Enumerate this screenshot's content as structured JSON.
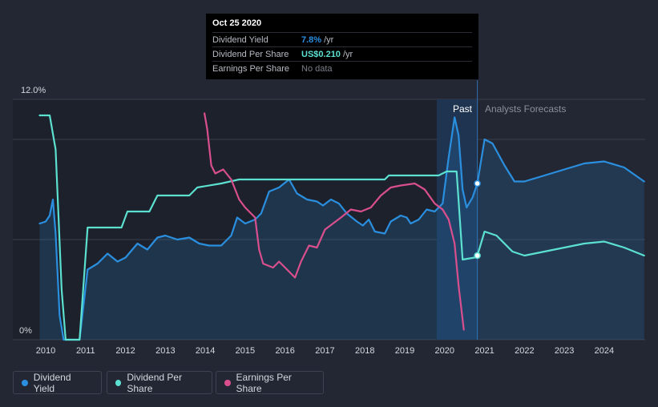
{
  "chart_data": {
    "type": "line",
    "y_axis": {
      "top_label": "12.0%",
      "bottom_label": "0%",
      "ylim": [
        0,
        12
      ]
    },
    "x_ticks": [
      "2010",
      "2011",
      "2012",
      "2013",
      "2014",
      "2015",
      "2016",
      "2017",
      "2018",
      "2019",
      "2020",
      "2021",
      "2022",
      "2023",
      "2024"
    ],
    "xlim": [
      2009.8,
      2025.0
    ],
    "gridlines_pct": [
      0,
      5,
      10,
      12
    ],
    "regions": {
      "past_label": "Past",
      "forecast_label": "Analysts Forecasts",
      "past_highlight": [
        2019.8,
        2020.82
      ]
    },
    "series": [
      {
        "name": "Dividend Yield",
        "color": "#2b8fe0",
        "fill": true,
        "points": [
          [
            2009.85,
            5.8
          ],
          [
            2010.0,
            5.9
          ],
          [
            2010.1,
            6.2
          ],
          [
            2010.18,
            7.0
          ],
          [
            2010.25,
            5.3
          ],
          [
            2010.35,
            1.2
          ],
          [
            2010.45,
            0.0
          ],
          [
            2010.85,
            0.0
          ],
          [
            2011.05,
            3.5
          ],
          [
            2011.3,
            3.8
          ],
          [
            2011.55,
            4.3
          ],
          [
            2011.8,
            3.9
          ],
          [
            2012.0,
            4.1
          ],
          [
            2012.3,
            4.8
          ],
          [
            2012.55,
            4.5
          ],
          [
            2012.8,
            5.1
          ],
          [
            2013.0,
            5.2
          ],
          [
            2013.3,
            5.0
          ],
          [
            2013.6,
            5.1
          ],
          [
            2013.85,
            4.8
          ],
          [
            2014.1,
            4.7
          ],
          [
            2014.4,
            4.7
          ],
          [
            2014.65,
            5.2
          ],
          [
            2014.8,
            6.1
          ],
          [
            2015.0,
            5.8
          ],
          [
            2015.25,
            6.0
          ],
          [
            2015.4,
            6.3
          ],
          [
            2015.6,
            7.4
          ],
          [
            2015.85,
            7.6
          ],
          [
            2016.1,
            8.0
          ],
          [
            2016.3,
            7.3
          ],
          [
            2016.55,
            7.0
          ],
          [
            2016.8,
            6.9
          ],
          [
            2016.95,
            6.7
          ],
          [
            2017.15,
            7.0
          ],
          [
            2017.35,
            6.8
          ],
          [
            2017.55,
            6.3
          ],
          [
            2017.8,
            5.9
          ],
          [
            2017.95,
            5.7
          ],
          [
            2018.0,
            5.8
          ],
          [
            2018.1,
            6.0
          ],
          [
            2018.25,
            5.4
          ],
          [
            2018.5,
            5.3
          ],
          [
            2018.65,
            5.9
          ],
          [
            2018.9,
            6.2
          ],
          [
            2019.05,
            6.1
          ],
          [
            2019.15,
            5.8
          ],
          [
            2019.35,
            6.0
          ],
          [
            2019.55,
            6.5
          ],
          [
            2019.75,
            6.4
          ],
          [
            2019.95,
            6.8
          ],
          [
            2020.1,
            9.1
          ],
          [
            2020.25,
            11.1
          ],
          [
            2020.35,
            10.2
          ],
          [
            2020.45,
            7.5
          ],
          [
            2020.55,
            6.6
          ],
          [
            2020.7,
            7.1
          ],
          [
            2020.82,
            7.8
          ],
          [
            2021.0,
            10.0
          ],
          [
            2021.2,
            9.8
          ],
          [
            2021.5,
            8.7
          ],
          [
            2021.75,
            7.9
          ],
          [
            2022.0,
            7.9
          ],
          [
            2022.5,
            8.2
          ],
          [
            2023.0,
            8.5
          ],
          [
            2023.5,
            8.8
          ],
          [
            2024.0,
            8.9
          ],
          [
            2024.5,
            8.6
          ],
          [
            2025.0,
            7.9
          ]
        ]
      },
      {
        "name": "Dividend Per Share",
        "color": "#5ce0d0",
        "fill": false,
        "points": [
          [
            2009.85,
            11.2
          ],
          [
            2010.1,
            11.2
          ],
          [
            2010.25,
            9.5
          ],
          [
            2010.4,
            2.5
          ],
          [
            2010.5,
            0.0
          ],
          [
            2010.85,
            0.0
          ],
          [
            2011.05,
            5.6
          ],
          [
            2011.4,
            5.6
          ],
          [
            2011.9,
            5.6
          ],
          [
            2012.05,
            6.4
          ],
          [
            2012.6,
            6.4
          ],
          [
            2012.8,
            7.2
          ],
          [
            2013.6,
            7.2
          ],
          [
            2013.8,
            7.6
          ],
          [
            2014.4,
            7.8
          ],
          [
            2014.85,
            8.0
          ],
          [
            2015.5,
            8.0
          ],
          [
            2016.3,
            8.0
          ],
          [
            2017.5,
            8.0
          ],
          [
            2018.5,
            8.0
          ],
          [
            2018.6,
            8.2
          ],
          [
            2019.0,
            8.2
          ],
          [
            2019.85,
            8.2
          ],
          [
            2020.05,
            8.4
          ],
          [
            2020.3,
            8.4
          ],
          [
            2020.45,
            4.0
          ],
          [
            2020.75,
            4.1
          ],
          [
            2020.82,
            4.2
          ],
          [
            2021.0,
            5.4
          ],
          [
            2021.3,
            5.2
          ],
          [
            2021.7,
            4.4
          ],
          [
            2022.0,
            4.2
          ],
          [
            2022.5,
            4.4
          ],
          [
            2023.0,
            4.6
          ],
          [
            2023.5,
            4.8
          ],
          [
            2024.0,
            4.9
          ],
          [
            2024.5,
            4.6
          ],
          [
            2025.0,
            4.2
          ]
        ]
      },
      {
        "name": "Earnings Per Share",
        "color": "#d94f8e",
        "fill": false,
        "points": [
          [
            2013.98,
            11.3
          ],
          [
            2014.05,
            10.5
          ],
          [
            2014.15,
            8.7
          ],
          [
            2014.25,
            8.3
          ],
          [
            2014.45,
            8.5
          ],
          [
            2014.65,
            8.0
          ],
          [
            2014.85,
            7.0
          ],
          [
            2015.0,
            6.6
          ],
          [
            2015.25,
            6.1
          ],
          [
            2015.35,
            4.5
          ],
          [
            2015.45,
            3.8
          ],
          [
            2015.7,
            3.6
          ],
          [
            2015.85,
            3.9
          ],
          [
            2016.05,
            3.5
          ],
          [
            2016.25,
            3.1
          ],
          [
            2016.4,
            3.9
          ],
          [
            2016.6,
            4.7
          ],
          [
            2016.8,
            4.6
          ],
          [
            2017.0,
            5.5
          ],
          [
            2017.4,
            6.1
          ],
          [
            2017.65,
            6.5
          ],
          [
            2017.9,
            6.4
          ],
          [
            2018.15,
            6.6
          ],
          [
            2018.4,
            7.2
          ],
          [
            2018.65,
            7.6
          ],
          [
            2018.9,
            7.7
          ],
          [
            2019.25,
            7.8
          ],
          [
            2019.5,
            7.5
          ],
          [
            2019.75,
            6.8
          ],
          [
            2019.95,
            6.5
          ],
          [
            2020.1,
            6.0
          ],
          [
            2020.25,
            4.8
          ],
          [
            2020.35,
            2.7
          ],
          [
            2020.48,
            0.5
          ]
        ]
      }
    ],
    "highlight": {
      "x": 2020.82,
      "date": "Oct 25 2020",
      "dividend_yield": 7.8,
      "dividend_per_share_y": 4.2
    }
  },
  "tooltip": {
    "date": "Oct 25 2020",
    "rows": [
      {
        "label": "Dividend Yield",
        "value": "7.8%",
        "unit": "/yr",
        "color": "#2b8fe0"
      },
      {
        "label": "Dividend Per Share",
        "value": "US$0.210",
        "unit": "/yr",
        "color": "#5ce0d0"
      },
      {
        "label": "Earnings Per Share",
        "value": "No data",
        "unit": "",
        "color": "#7a7f89"
      }
    ]
  },
  "legend": [
    {
      "label": "Dividend Yield",
      "color": "#2b8fe0"
    },
    {
      "label": "Dividend Per Share",
      "color": "#5ce0d0"
    },
    {
      "label": "Earnings Per Share",
      "color": "#d94f8e"
    }
  ]
}
